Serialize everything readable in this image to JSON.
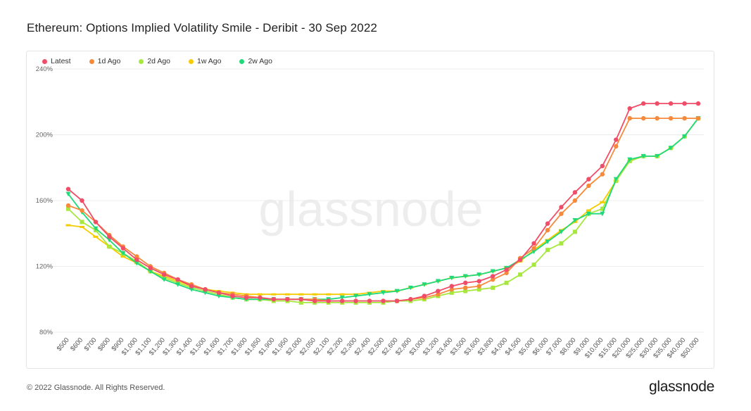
{
  "title": "Ethereum: Options Implied Volatility Smile - Deribit - 30 Sep 2022",
  "footer": "© 2022 Glassnode. All Rights Reserved.",
  "brand": "glassnode",
  "watermark": "glassnode",
  "legend": [
    {
      "name": "Latest",
      "color": "#ef4d68"
    },
    {
      "name": "1d Ago",
      "color": "#f7893b"
    },
    {
      "name": "2d Ago",
      "color": "#a6e83e"
    },
    {
      "name": "1w Ago",
      "color": "#f5cc00"
    },
    {
      "name": "2w Ago",
      "color": "#1fd97a"
    }
  ],
  "chart_data": {
    "type": "line",
    "title": "Ethereum: Options Implied Volatility Smile - Deribit - 30 Sep 2022",
    "xlabel": "",
    "ylabel": "",
    "ylim": [
      80,
      240
    ],
    "y_ticks": [
      "80%",
      "120%",
      "160%",
      "200%",
      "240%"
    ],
    "y_tick_values": [
      80,
      120,
      160,
      200,
      240
    ],
    "grid": true,
    "legend_position": "top-left",
    "categories": [
      "$500",
      "$600",
      "$700",
      "$800",
      "$900",
      "$1,000",
      "$1,100",
      "$1,200",
      "$1,300",
      "$1,400",
      "$1,500",
      "$1,600",
      "$1,700",
      "$1,800",
      "$1,850",
      "$1,900",
      "$1,950",
      "$2,000",
      "$2,050",
      "$2,100",
      "$2,200",
      "$2,300",
      "$2,400",
      "$2,500",
      "$2,600",
      "$2,800",
      "$3,000",
      "$3,200",
      "$3,400",
      "$3,500",
      "$3,600",
      "$3,800",
      "$4,000",
      "$4,500",
      "$5,000",
      "$6,000",
      "$7,000",
      "$8,000",
      "$9,000",
      "$10,000",
      "$15,000",
      "$20,000",
      "$25,000",
      "$30,000",
      "$35,000",
      "$40,000",
      "$50,000"
    ],
    "series": [
      {
        "name": "Latest",
        "color": "#ef4d68",
        "values": [
          167,
          160,
          147,
          138,
          131,
          124,
          119,
          115,
          112,
          108,
          106,
          104,
          102,
          101,
          101,
          100,
          100,
          100,
          99,
          99,
          99,
          99,
          99,
          99,
          99,
          100,
          102,
          105,
          108,
          110,
          111,
          114,
          118,
          124,
          134,
          146,
          156,
          165,
          173,
          181,
          197,
          216,
          219,
          219,
          219,
          219,
          219
        ]
      },
      {
        "name": "1d Ago",
        "color": "#f7893b",
        "values": [
          157,
          154,
          147,
          139,
          132,
          126,
          120,
          116,
          112,
          109,
          106,
          104,
          103,
          102,
          101,
          100,
          100,
          100,
          100,
          99,
          99,
          99,
          99,
          99,
          99,
          100,
          101,
          103,
          106,
          107,
          108,
          112,
          116,
          125,
          131,
          142,
          152,
          160,
          169,
          176,
          193,
          210,
          210,
          210,
          210,
          210,
          210
        ]
      },
      {
        "name": "2d Ago",
        "color": "#a6e83e",
        "values": [
          155,
          147,
          142,
          132,
          128,
          123,
          117,
          113,
          110,
          107,
          105,
          103,
          101,
          100,
          100,
          99,
          99,
          98,
          98,
          98,
          98,
          98,
          98,
          98,
          99,
          99,
          100,
          102,
          104,
          105,
          106,
          107,
          110,
          115,
          121,
          130,
          134,
          141,
          152,
          155,
          172,
          184,
          187,
          187,
          192,
          199,
          210
        ]
      },
      {
        "name": "1w Ago",
        "color": "#f5cc00",
        "values": [
          145,
          144,
          138,
          132,
          126,
          122,
          117,
          114,
          111,
          108,
          106,
          105,
          104,
          103,
          103,
          103,
          103,
          103,
          103,
          103,
          103,
          103,
          104,
          105,
          105,
          107,
          109,
          111,
          113,
          114,
          115,
          117,
          119,
          123,
          130,
          136,
          142,
          147,
          154,
          159,
          172,
          184,
          187,
          187,
          192,
          199,
          210
        ]
      },
      {
        "name": "2w Ago",
        "color": "#1fd97a",
        "values": [
          164,
          153,
          143,
          136,
          128,
          122,
          117,
          112,
          109,
          106,
          104,
          102,
          101,
          100,
          100,
          100,
          100,
          100,
          100,
          100,
          101,
          102,
          103,
          104,
          105,
          107,
          109,
          111,
          113,
          114,
          115,
          117,
          119,
          124,
          129,
          135,
          141,
          148,
          152,
          152,
          173,
          185,
          187,
          187,
          192,
          199,
          210
        ]
      }
    ]
  }
}
